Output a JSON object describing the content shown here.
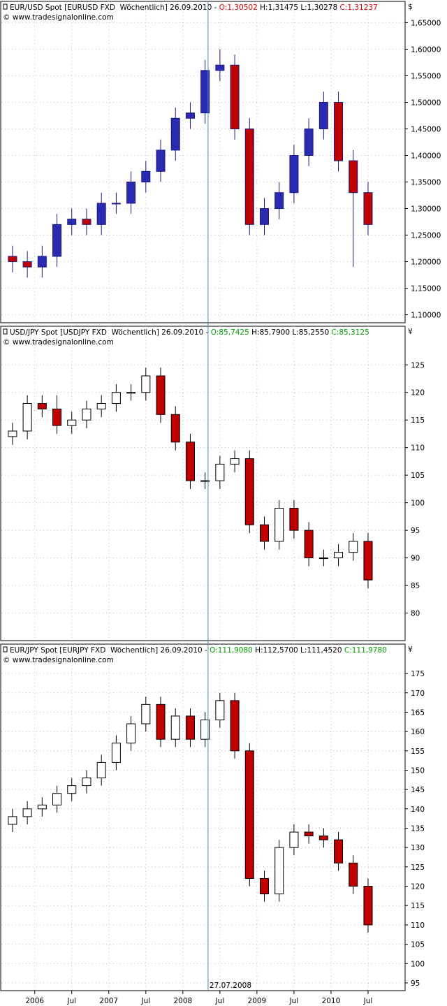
{
  "chart_data": [
    {
      "type": "candlestick",
      "title": "EUR/USD Spot [EURUSD FXD  Wöchentlich] 26.09.2010 - ",
      "quote_open": "O:1,30502",
      "quote_high_low": "H:1,31475 L:1,30278",
      "quote_close": "C:1,31237",
      "quote_color": "#e00000",
      "copyright": "© www.tradesignalonline.com",
      "unit": "$",
      "up_color": "#2a2ab0",
      "down_color": "#c00000",
      "wick_color": "#1a1a80",
      "xlim": [
        2005.55,
        2011
      ],
      "x": [
        2005.7,
        2005.9,
        2006.1,
        2006.3,
        2006.5,
        2006.7,
        2006.9,
        2007.1,
        2007.3,
        2007.5,
        2007.7,
        2007.9,
        2008.1,
        2008.3,
        2008.5,
        2008.7,
        2008.9,
        2009.1,
        2009.3,
        2009.5,
        2009.7,
        2009.9,
        2010.1,
        2010.3,
        2010.5
      ],
      "open": [
        1.21,
        1.2,
        1.19,
        1.21,
        1.27,
        1.28,
        1.27,
        1.31,
        1.31,
        1.35,
        1.37,
        1.41,
        1.47,
        1.48,
        1.56,
        1.57,
        1.45,
        1.27,
        1.3,
        1.33,
        1.4,
        1.45,
        1.5,
        1.39,
        1.33
      ],
      "high": [
        1.23,
        1.22,
        1.23,
        1.29,
        1.3,
        1.3,
        1.33,
        1.33,
        1.37,
        1.39,
        1.43,
        1.49,
        1.5,
        1.58,
        1.6,
        1.59,
        1.47,
        1.32,
        1.35,
        1.42,
        1.47,
        1.52,
        1.52,
        1.41,
        1.35
      ],
      "low": [
        1.18,
        1.17,
        1.17,
        1.19,
        1.25,
        1.25,
        1.25,
        1.29,
        1.29,
        1.33,
        1.35,
        1.39,
        1.45,
        1.46,
        1.54,
        1.43,
        1.25,
        1.25,
        1.28,
        1.31,
        1.38,
        1.43,
        1.37,
        1.19,
        1.25
      ],
      "close": [
        1.2,
        1.19,
        1.21,
        1.27,
        1.28,
        1.27,
        1.31,
        1.31,
        1.35,
        1.37,
        1.41,
        1.47,
        1.48,
        1.56,
        1.57,
        1.45,
        1.27,
        1.3,
        1.33,
        1.4,
        1.45,
        1.5,
        1.39,
        1.33,
        1.27
      ],
      "ylim": [
        1.085,
        1.69
      ],
      "yticks": [
        {
          "value": 1.65,
          "label": "1,65000"
        },
        {
          "value": 1.6,
          "label": "1,60000"
        },
        {
          "value": 1.55,
          "label": "1,55000"
        },
        {
          "value": 1.5,
          "label": "1,50000"
        },
        {
          "value": 1.45,
          "label": "1,45000"
        },
        {
          "value": 1.4,
          "label": "1,40000"
        },
        {
          "value": 1.35,
          "label": "1,35000"
        },
        {
          "value": 1.3,
          "label": "1,30000"
        },
        {
          "value": 1.25,
          "label": "1,25000"
        },
        {
          "value": 1.2,
          "label": "1,20000"
        },
        {
          "value": 1.15,
          "label": "1,15000"
        },
        {
          "value": 1.1,
          "label": "1,10000"
        }
      ],
      "grid": true
    },
    {
      "type": "candlestick",
      "title": "USD/JPY Spot [USDJPY FXD  Wöchentlich] 26.09.2010 - ",
      "quote_open": "O:85,7425",
      "quote_high_low": "H:85,7900 L:85,2550",
      "quote_close": "C:85,3125",
      "quote_color": "#00a000",
      "copyright": "© www.tradesignalonline.com",
      "unit": "¥",
      "up_color": "#ffffff",
      "down_color": "#c00000",
      "wick_color": "#000000",
      "xlim": [
        2005.55,
        2011
      ],
      "x": [
        2005.7,
        2005.9,
        2006.1,
        2006.3,
        2006.5,
        2006.7,
        2006.9,
        2007.1,
        2007.3,
        2007.5,
        2007.7,
        2007.9,
        2008.1,
        2008.3,
        2008.5,
        2008.7,
        2008.9,
        2009.1,
        2009.3,
        2009.5,
        2009.7,
        2009.9,
        2010.1,
        2010.3,
        2010.5
      ],
      "open": [
        112,
        113,
        118,
        117,
        114,
        115,
        117,
        118,
        120,
        120,
        123,
        116,
        111,
        104,
        104,
        107,
        108,
        96,
        93,
        99,
        95,
        90,
        90,
        91,
        93
      ],
      "high": [
        114.5,
        119.5,
        119.5,
        119.5,
        116.5,
        118.5,
        119.5,
        121.5,
        121.5,
        124.5,
        124.5,
        117.5,
        112.5,
        105.5,
        108.5,
        109.5,
        109.5,
        97.5,
        100.5,
        100.5,
        96.5,
        91.5,
        92.5,
        94.5,
        94.5
      ],
      "low": [
        110.5,
        111.5,
        115.5,
        112.5,
        112.5,
        113.5,
        115.5,
        116.5,
        118.5,
        118.5,
        114.5,
        109.5,
        102.5,
        102.5,
        102.5,
        105.5,
        94.5,
        91.5,
        91.5,
        93.5,
        88.5,
        88.5,
        88.5,
        89.5,
        84.5
      ],
      "close": [
        113,
        118,
        117,
        114,
        115,
        117,
        118,
        120,
        120,
        123,
        116,
        111,
        104,
        104,
        107,
        108,
        96,
        93,
        99,
        95,
        90,
        90,
        91,
        93,
        86
      ],
      "ylim": [
        75,
        132
      ],
      "yticks": [
        125,
        120,
        115,
        110,
        105,
        100,
        95,
        90,
        85,
        80
      ],
      "grid": true
    },
    {
      "type": "candlestick",
      "title": "EUR/JPY Spot [EURJPY FXD  Wöchentlich] 26.09.2010 - ",
      "quote_open": "O:111,9080",
      "quote_high_low": "H:112,5700 L:111,4520",
      "quote_close": "C:111,9780",
      "quote_color": "#00a000",
      "copyright": "© www.tradesignalonline.com",
      "unit": "¥",
      "up_color": "#ffffff",
      "down_color": "#c00000",
      "wick_color": "#000000",
      "xlim": [
        2005.55,
        2011
      ],
      "x": [
        2005.7,
        2005.9,
        2006.1,
        2006.3,
        2006.5,
        2006.7,
        2006.9,
        2007.1,
        2007.3,
        2007.5,
        2007.7,
        2007.9,
        2008.1,
        2008.3,
        2008.5,
        2008.7,
        2008.9,
        2009.1,
        2009.3,
        2009.5,
        2009.7,
        2009.9,
        2010.1,
        2010.3,
        2010.5
      ],
      "open": [
        136,
        138,
        140,
        141,
        144,
        146,
        148,
        152,
        157,
        162,
        167,
        158,
        164,
        158,
        163,
        168,
        155,
        122,
        118,
        130,
        134,
        133,
        132,
        126,
        120
      ],
      "high": [
        140,
        142,
        143,
        146,
        148,
        150,
        154,
        159,
        164,
        169,
        169,
        166,
        166,
        165,
        170,
        170,
        157,
        124,
        132,
        136,
        136,
        135,
        134,
        128,
        122
      ],
      "low": [
        134,
        136,
        138,
        139,
        142,
        144,
        146,
        150,
        155,
        160,
        156,
        156,
        156,
        156,
        161,
        153,
        120,
        116,
        116,
        128,
        131,
        130,
        124,
        118,
        108
      ],
      "close": [
        138,
        140,
        141,
        144,
        146,
        148,
        152,
        157,
        162,
        167,
        158,
        164,
        158,
        163,
        168,
        155,
        122,
        118,
        130,
        134,
        133,
        132,
        126,
        120,
        110
      ],
      "ylim": [
        93,
        182.6
      ],
      "yticks": [
        175,
        170,
        165,
        160,
        155,
        150,
        145,
        140,
        135,
        130,
        125,
        120,
        115,
        110,
        105,
        100,
        95
      ],
      "grid": true,
      "xticks": [
        {
          "value": 2006,
          "label": "2006"
        },
        {
          "value": 2006.5,
          "label": "Jul"
        },
        {
          "value": 2007,
          "label": "2007"
        },
        {
          "value": 2007.5,
          "label": "Jul"
        },
        {
          "value": 2008,
          "label": "2008"
        },
        {
          "value": 2008.5,
          "label": "Jul"
        },
        {
          "value": 2009,
          "label": "2009"
        },
        {
          "value": 2009.5,
          "label": "Jul"
        },
        {
          "value": 2010,
          "label": "2010"
        },
        {
          "value": 2010.5,
          "label": "Jul"
        }
      ],
      "marker": {
        "value": 2008.34,
        "label": "27.07.2008",
        "color": "#4a8aaa"
      }
    }
  ]
}
